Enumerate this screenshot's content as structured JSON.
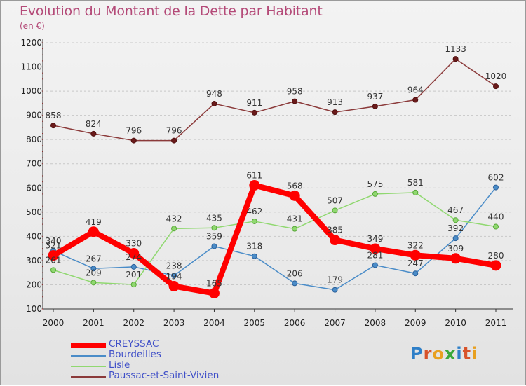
{
  "title": "Evolution du Montant de la Dette par Habitant",
  "subtitle": "(en €)",
  "logo": {
    "text": "Proxiti",
    "letter_colors": [
      "#2e7fc8",
      "#d8522a",
      "#e8a020",
      "#3aa83a",
      "#2e7fc8",
      "#d8522a",
      "#e8a020"
    ]
  },
  "chart_data": {
    "type": "line",
    "x": [
      "2000",
      "2001",
      "2002",
      "2003",
      "2004",
      "2005",
      "2006",
      "2007",
      "2008",
      "2009",
      "2010",
      "2011"
    ],
    "ylim": [
      100,
      1200
    ],
    "yticks": [
      "100",
      "200",
      "300",
      "400",
      "500",
      "600",
      "700",
      "800",
      "900",
      "1000",
      "1100",
      "1200"
    ],
    "grid": "horizontal dashed",
    "legend_position": "bottom-left",
    "series": [
      {
        "name": "CREYSSAC",
        "color": "#ff0000",
        "values": [
          321,
          419,
          330,
          194,
          165,
          611,
          568,
          385,
          349,
          322,
          309,
          280
        ]
      },
      {
        "name": "Bourdeilles",
        "color": "#4a8cc8",
        "values": [
          340,
          267,
          274,
          238,
          359,
          318,
          206,
          179,
          281,
          247,
          392,
          602
        ]
      },
      {
        "name": "Lisle",
        "color": "#90d870",
        "values": [
          261,
          209,
          201,
          432,
          435,
          462,
          431,
          507,
          575,
          581,
          467,
          440
        ]
      },
      {
        "name": "Paussac-et-Saint-Vivien",
        "color": "#8b3a3a",
        "values": [
          858,
          824,
          796,
          796,
          948,
          911,
          958,
          913,
          937,
          964,
          1133,
          1020
        ]
      }
    ]
  }
}
